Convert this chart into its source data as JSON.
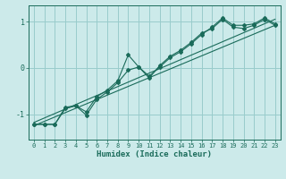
{
  "xlabel": "Humidex (Indice chaleur)",
  "bg_color": "#cceaea",
  "grid_color": "#99cccc",
  "line_color": "#1a6b5a",
  "xlim": [
    -0.5,
    23.5
  ],
  "ylim": [
    -1.55,
    1.35
  ],
  "yticks": [
    -1,
    0,
    1
  ],
  "xticks": [
    0,
    1,
    2,
    3,
    4,
    5,
    6,
    7,
    8,
    9,
    10,
    11,
    12,
    13,
    14,
    15,
    16,
    17,
    18,
    19,
    20,
    21,
    22,
    23
  ],
  "series1": [
    [
      0,
      -1.22
    ],
    [
      1,
      -1.22
    ],
    [
      2,
      -1.22
    ],
    [
      3,
      -0.88
    ],
    [
      4,
      -0.82
    ],
    [
      5,
      -0.95
    ],
    [
      6,
      -0.62
    ],
    [
      7,
      -0.48
    ],
    [
      8,
      -0.28
    ],
    [
      9,
      0.28
    ],
    [
      10,
      0.02
    ],
    [
      11,
      -0.18
    ],
    [
      12,
      0.02
    ],
    [
      13,
      0.22
    ],
    [
      14,
      0.35
    ],
    [
      15,
      0.52
    ],
    [
      16,
      0.72
    ],
    [
      17,
      0.88
    ],
    [
      18,
      1.08
    ],
    [
      19,
      0.92
    ],
    [
      20,
      0.92
    ],
    [
      21,
      0.95
    ],
    [
      22,
      1.08
    ],
    [
      23,
      0.95
    ]
  ],
  "series2": [
    [
      0,
      -1.22
    ],
    [
      1,
      -1.22
    ],
    [
      2,
      -1.22
    ],
    [
      3,
      -0.85
    ],
    [
      4,
      -0.82
    ],
    [
      5,
      -1.02
    ],
    [
      6,
      -0.68
    ],
    [
      7,
      -0.52
    ],
    [
      8,
      -0.32
    ],
    [
      9,
      -0.05
    ],
    [
      10,
      0.02
    ],
    [
      11,
      -0.22
    ],
    [
      12,
      0.05
    ],
    [
      13,
      0.25
    ],
    [
      14,
      0.38
    ],
    [
      15,
      0.55
    ],
    [
      16,
      0.75
    ],
    [
      17,
      0.85
    ],
    [
      18,
      1.05
    ],
    [
      19,
      0.88
    ],
    [
      20,
      0.85
    ],
    [
      21,
      0.92
    ],
    [
      22,
      1.05
    ],
    [
      23,
      0.92
    ]
  ],
  "line_straight1": [
    -1.25,
    0.92
  ],
  "line_straight2": [
    -1.18,
    1.05
  ]
}
